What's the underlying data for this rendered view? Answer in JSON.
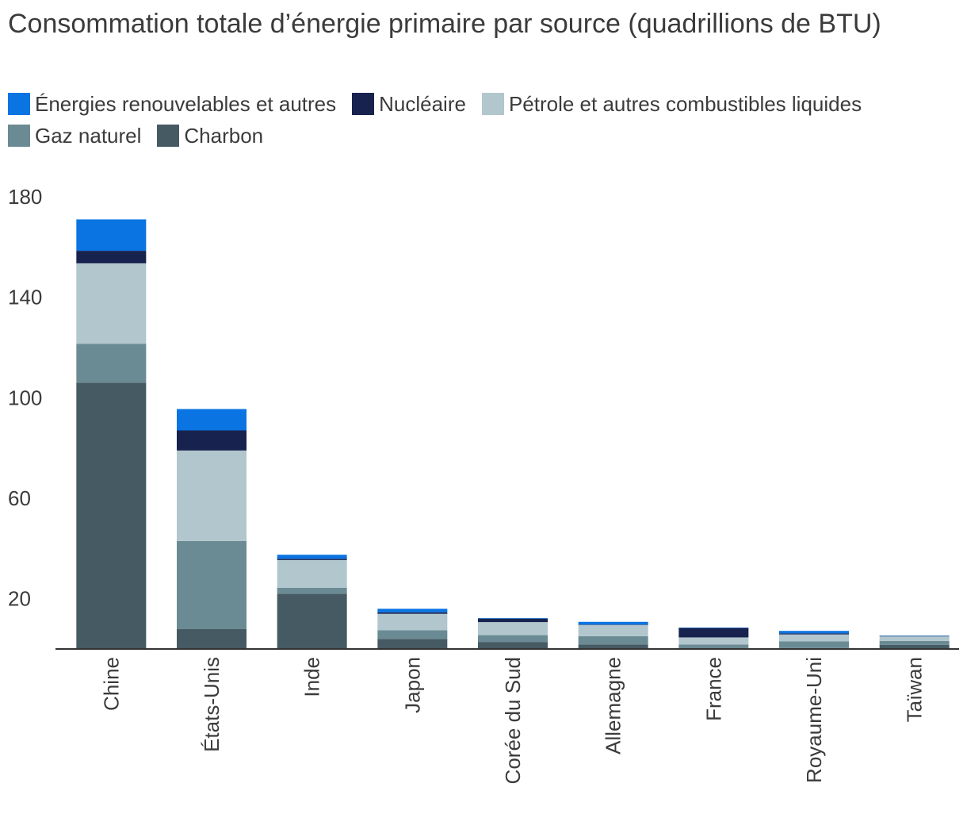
{
  "chart_data": {
    "type": "bar",
    "stacked": true,
    "title": "Consommation totale d’énergie primaire par source (quadrillions de BTU)",
    "xlabel": "",
    "ylabel": "",
    "ylim": [
      0,
      180
    ],
    "yticks": [
      20,
      60,
      100,
      140,
      180
    ],
    "grid": false,
    "legend_position": "top-left",
    "categories": [
      "Chine",
      "États-Unis",
      "Inde",
      "Japon",
      "Corée du Sud",
      "Allemagne",
      "France",
      "Royaume-Uni",
      "Taïwan"
    ],
    "series": [
      {
        "name": "Charbon",
        "color": "#455a63",
        "values": [
          106,
          8,
          22,
          4,
          2.8,
          1.8,
          0.2,
          0.4,
          1.6
        ]
      },
      {
        "name": "Gaz naturel",
        "color": "#6b8b94",
        "values": [
          15.5,
          35,
          2.4,
          3.5,
          2.7,
          3.3,
          1.6,
          2.6,
          1.6
        ]
      },
      {
        "name": "Pétrole et autres combustibles liquides",
        "color": "#b1c6cd",
        "values": [
          32,
          36,
          11,
          6.5,
          5.2,
          4.5,
          2.8,
          2.8,
          1.8
        ]
      },
      {
        "name": "Nucléaire",
        "color": "#17234e",
        "values": [
          5,
          8,
          0.5,
          0.6,
          1.4,
          0.1,
          3.8,
          0.4,
          0.2
        ]
      },
      {
        "name": "Énergies renouvelables et autres",
        "color": "#0a74e3",
        "values": [
          12.5,
          8.5,
          1.6,
          1.4,
          0.2,
          1.1,
          0.1,
          1.0,
          0.1
        ]
      }
    ]
  },
  "legend": [
    {
      "label": "Énergies renouvelables et autres",
      "color": "#0a74e3"
    },
    {
      "label": "Nucléaire",
      "color": "#17234e"
    },
    {
      "label": "Pétrole et autres combustibles liquides",
      "color": "#b1c6cd"
    },
    {
      "label": "Gaz naturel",
      "color": "#6b8b94"
    },
    {
      "label": "Charbon",
      "color": "#455a63"
    }
  ]
}
